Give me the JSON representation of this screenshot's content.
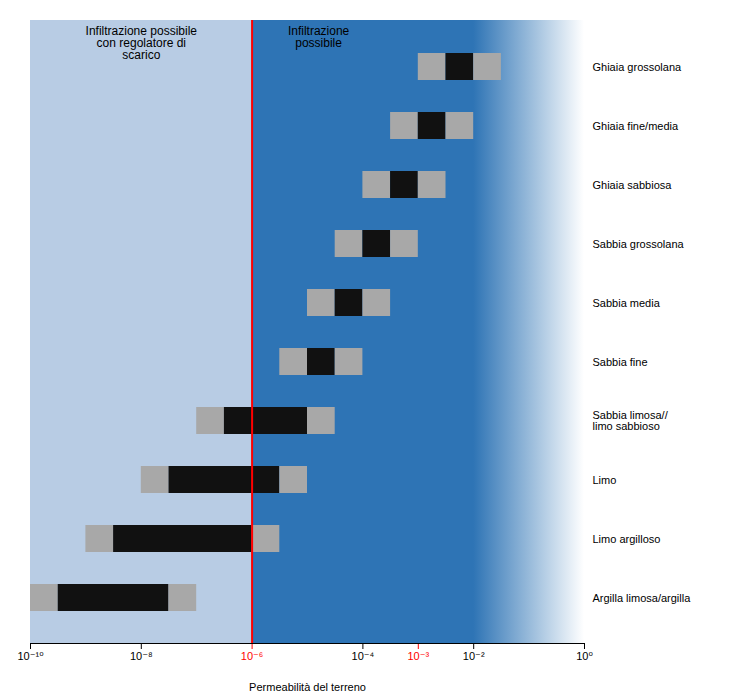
{
  "chart_data": {
    "type": "bar",
    "orientation": "horizontal",
    "xlabel": "Permeabilità del terreno",
    "categories": [
      "Ghiaia grossolana",
      "Ghiaia fine/media",
      "Ghiaia sabbiosa",
      "Sabbia grossolana",
      "Sabbia media",
      "Sabbia fine",
      "Sabbia limosa//\nlimo sabbioso",
      "Limo",
      "Limo argilloso",
      "Argilla limosa/argilla"
    ],
    "bars": [
      {
        "gray_left": -3.0,
        "black_left": -2.5,
        "black_right": -2.0,
        "gray_right": -1.5
      },
      {
        "gray_left": -3.5,
        "black_left": -3.0,
        "black_right": -2.5,
        "gray_right": -2.0
      },
      {
        "gray_left": -4.0,
        "black_left": -3.5,
        "black_right": -3.0,
        "gray_right": -2.5
      },
      {
        "gray_left": -4.5,
        "black_left": -4.0,
        "black_right": -3.5,
        "gray_right": -3.0
      },
      {
        "gray_left": -5.0,
        "black_left": -4.5,
        "black_right": -4.0,
        "gray_right": -3.5
      },
      {
        "gray_left": -5.5,
        "black_left": -5.0,
        "black_right": -4.5,
        "gray_right": -4.0
      },
      {
        "gray_left": -7.0,
        "black_left": -6.5,
        "black_right": -5.0,
        "gray_right": -4.5
      },
      {
        "gray_left": -8.0,
        "black_left": -7.5,
        "black_right": -5.5,
        "gray_right": -5.0
      },
      {
        "gray_left": -9.0,
        "black_left": -8.5,
        "black_right": -6.0,
        "gray_right": -5.5
      },
      {
        "gray_left": -10.0,
        "black_left": -9.5,
        "black_right": -7.5,
        "gray_right": -7.0
      }
    ],
    "colors": [
      "#a8a8a8",
      "#111111",
      "#a8a8a8"
    ],
    "xlim": [
      -10,
      0
    ],
    "xticks": [
      {
        "value": -10,
        "label": "10⁻¹⁰"
      },
      {
        "value": -8,
        "label": "10⁻⁸"
      },
      {
        "value": -6,
        "label": "10⁻⁶",
        "color": "red"
      },
      {
        "value": -4,
        "label": "10⁻⁴"
      },
      {
        "value": -3,
        "label": "10⁻³",
        "color": "red"
      },
      {
        "value": -2,
        "label": "10⁻²"
      },
      {
        "value": 0,
        "label": "10⁰"
      }
    ],
    "reference_line": {
      "x": -6,
      "color": "red"
    },
    "regions": [
      {
        "from": -10,
        "to": -6,
        "color": "#b8cce4"
      },
      {
        "from": -6,
        "to": 0,
        "color": "#2e74b5",
        "fade_from": -2
      }
    ],
    "annotations": [
      {
        "text": "Infiltrazione possibile\ncon regolatore di\nscarico",
        "x": -8.0
      },
      {
        "text": "Infiltrazione\npossibile",
        "x": -4.8
      }
    ]
  }
}
